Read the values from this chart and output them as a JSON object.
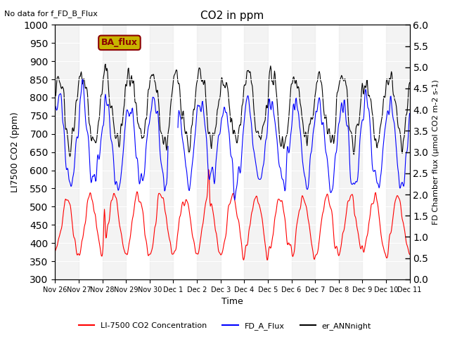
{
  "title": "CO2 in ppm",
  "title_note": "No data for f_FD_B_Flux",
  "ylabel_left": "LI7500 CO2 (ppm)",
  "ylabel_right": "FD Chamber flux (μmol CO2 m-2 s-1)",
  "xlabel": "Time",
  "ylim_left": [
    300,
    1000
  ],
  "ylim_right": [
    0.0,
    6.0
  ],
  "yticks_left": [
    300,
    350,
    400,
    450,
    500,
    550,
    600,
    650,
    700,
    750,
    800,
    850,
    900,
    950,
    1000
  ],
  "yticks_right": [
    0.0,
    0.5,
    1.0,
    1.5,
    2.0,
    2.5,
    3.0,
    3.5,
    4.0,
    4.5,
    5.0,
    5.5,
    6.0
  ],
  "xtick_labels": [
    "Nov 26",
    "Nov 27",
    "Nov 28",
    "Nov 29",
    "Nov 30",
    "Dec 1",
    "Dec 2",
    "Dec 3",
    "Dec 4",
    "Dec 5",
    "Dec 6",
    "Dec 7",
    "Dec 8",
    "Dec 9",
    "Dec 10",
    "Dec 11"
  ],
  "legend_entries": [
    "LI-7500 CO2 Concentration",
    "FD_A_Flux",
    "er_ANNnight"
  ],
  "legend_colors": [
    "red",
    "blue",
    "black"
  ],
  "ba_flux_box_color": "#c8b400",
  "background_band_color": "#e8e8e8",
  "line_red_color": "red",
  "line_blue_color": "blue",
  "line_black_color": "black"
}
